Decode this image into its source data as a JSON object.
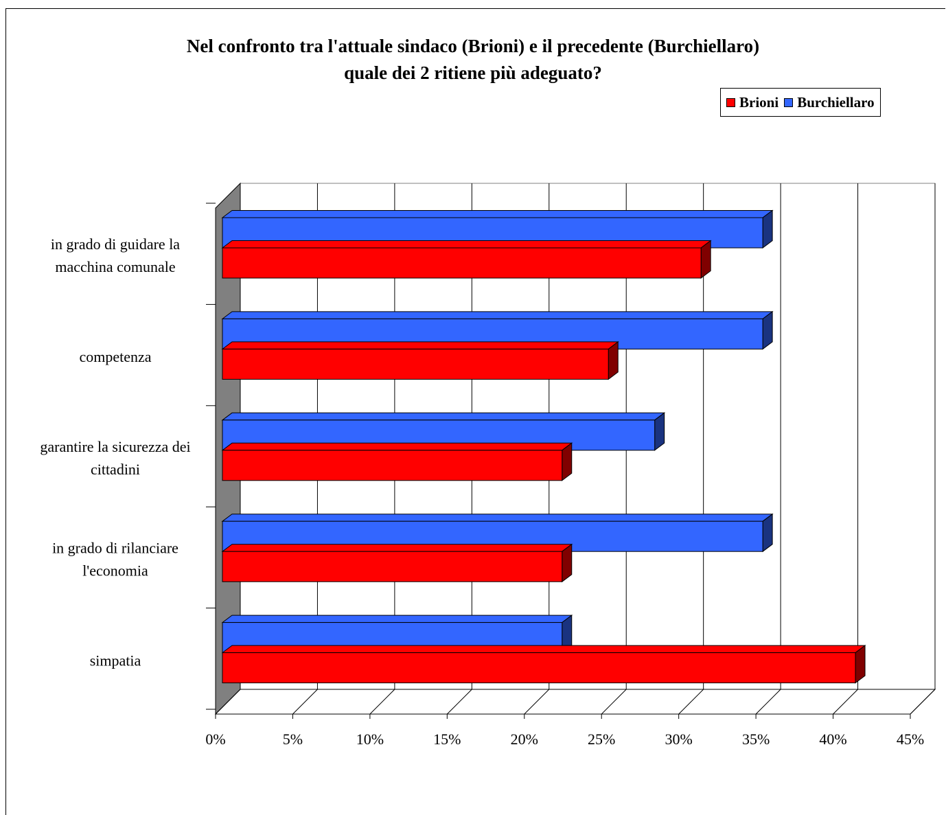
{
  "chart_data": {
    "type": "bar",
    "orientation": "horizontal",
    "title": [
      "Nel confronto tra l'attuale sindaco (Brioni) e il precedente (Burchiellaro)",
      "quale dei 2 ritiene più adeguato?"
    ],
    "categories": [
      "in grado di guidare la macchina comunale",
      "competenza",
      "garantire la sicurezza dei cittadini",
      "in grado di rilanciare l'economia",
      "simpatia"
    ],
    "category_label_lines": [
      [
        "in grado di guidare la",
        "macchina comunale"
      ],
      [
        "competenza"
      ],
      [
        "garantire la sicurezza dei",
        "cittadini"
      ],
      [
        "in grado di rilanciare",
        "l'economia"
      ],
      [
        "simpatia"
      ]
    ],
    "series": [
      {
        "name": "Brioni",
        "color": "#ff0000",
        "side_color": "#800000",
        "values": [
          31,
          25,
          22,
          22,
          41
        ]
      },
      {
        "name": "Burchiellaro",
        "color": "#3366ff",
        "side_color": "#1a3380",
        "values": [
          35,
          35,
          28,
          35,
          22
        ]
      }
    ],
    "x_ticks": [
      "0%",
      "5%",
      "10%",
      "15%",
      "20%",
      "25%",
      "30%",
      "35%",
      "40%",
      "45%"
    ],
    "xlim": [
      0,
      45
    ],
    "grid": true,
    "legend_position": "top-right",
    "style": "3d"
  }
}
